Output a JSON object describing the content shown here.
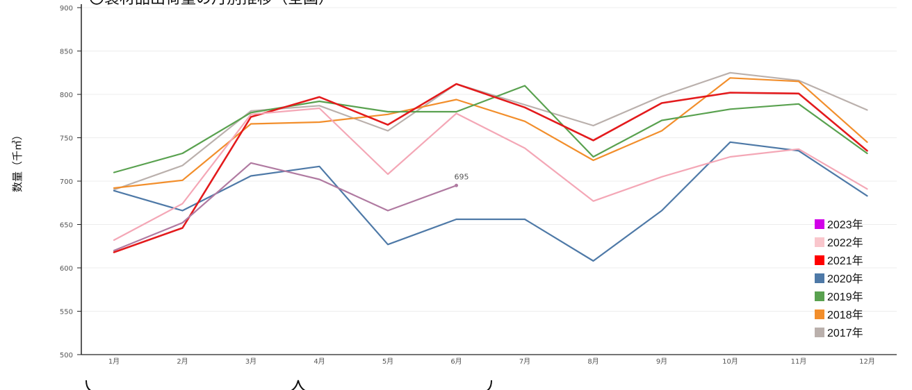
{
  "chart_data": {
    "type": "line",
    "title": "〇製材品出荷量の月別推移（全国）",
    "ylabel": "数量（千㎥）",
    "xlabel": "",
    "ylim": [
      500,
      900
    ],
    "yticks": [
      "500",
      "550",
      "600",
      "650",
      "700",
      "750",
      "800",
      "850",
      "900"
    ],
    "categories": [
      "1月",
      "2月",
      "3月",
      "4月",
      "5月",
      "6月",
      "7月",
      "8月",
      "9月",
      "10月",
      "11月",
      "12月"
    ],
    "grid": true,
    "legend_position": "bottom-right",
    "series": [
      {
        "name": "2017年",
        "color": "#bab0ac",
        "width": 2.2,
        "values": [
          690,
          718,
          781,
          787,
          758,
          812,
          788,
          764,
          798,
          825,
          816,
          782
        ]
      },
      {
        "name": "2018年",
        "color": "#f28e2b",
        "width": 2.2,
        "values": [
          692,
          701,
          766,
          768,
          777,
          794,
          769,
          724,
          758,
          819,
          815,
          745
        ]
      },
      {
        "name": "2019年",
        "color": "#59a14f",
        "width": 2.2,
        "values": [
          710,
          732,
          779,
          792,
          780,
          780,
          810,
          728,
          770,
          783,
          789,
          732
        ]
      },
      {
        "name": "2020年",
        "color": "#4e79a7",
        "width": 2.2,
        "values": [
          689,
          666,
          706,
          717,
          627,
          656,
          656,
          608,
          666,
          745,
          735,
          683
        ]
      },
      {
        "name": "2021年",
        "color": "#e31a1c",
        "width": 2.6,
        "values": [
          618,
          646,
          774,
          797,
          765,
          812,
          785,
          747,
          790,
          802,
          801,
          735
        ]
      },
      {
        "name": "2022年",
        "color": "#f4a7b6",
        "width": 2.2,
        "values": [
          632,
          674,
          777,
          784,
          708,
          778,
          738,
          677,
          705,
          728,
          737,
          691
        ]
      },
      {
        "name": "2023年",
        "color": "#b07aa1",
        "width": 2.2,
        "values": [
          620,
          652,
          721,
          702,
          666,
          695,
          null,
          null,
          null,
          null,
          null,
          null
        ]
      }
    ],
    "legend": [
      {
        "label": "2023年",
        "color": "#d100e8"
      },
      {
        "label": "2022年",
        "color": "#f9c6cc"
      },
      {
        "label": "2021年",
        "color": "#ff0000"
      },
      {
        "label": "2020年",
        "color": "#4e79a7"
      },
      {
        "label": "2019年",
        "color": "#59a14f"
      },
      {
        "label": "2018年",
        "color": "#f28e2b"
      },
      {
        "label": "2017年",
        "color": "#bab0ac"
      }
    ],
    "annotations": [
      {
        "series": "2023年",
        "index": 5,
        "text": "695"
      }
    ]
  }
}
